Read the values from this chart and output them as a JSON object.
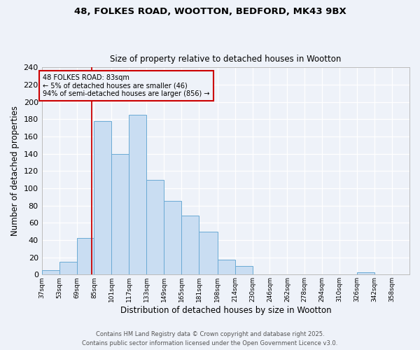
{
  "title1": "48, FOLKES ROAD, WOOTTON, BEDFORD, MK43 9BX",
  "title2": "Size of property relative to detached houses in Wootton",
  "xlabel": "Distribution of detached houses by size in Wootton",
  "ylabel": "Number of detached properties",
  "bar_left_edges": [
    37,
    53,
    69,
    85,
    101,
    117,
    133,
    149,
    165,
    181,
    198,
    214,
    230,
    246,
    262,
    278,
    294,
    310,
    326,
    342
  ],
  "bar_widths": [
    16,
    16,
    16,
    16,
    16,
    16,
    16,
    16,
    16,
    17,
    16,
    16,
    16,
    16,
    16,
    16,
    16,
    16,
    16,
    16
  ],
  "bar_heights": [
    5,
    15,
    42,
    178,
    140,
    185,
    110,
    85,
    68,
    50,
    17,
    10,
    0,
    0,
    0,
    0,
    0,
    0,
    3,
    0
  ],
  "bar_facecolor": "#c9ddf2",
  "bar_edgecolor": "#6aaad4",
  "tick_labels": [
    "37sqm",
    "53sqm",
    "69sqm",
    "85sqm",
    "101sqm",
    "117sqm",
    "133sqm",
    "149sqm",
    "165sqm",
    "181sqm",
    "198sqm",
    "214sqm",
    "230sqm",
    "246sqm",
    "262sqm",
    "278sqm",
    "294sqm",
    "310sqm",
    "326sqm",
    "342sqm",
    "358sqm"
  ],
  "ylim": [
    0,
    240
  ],
  "yticks": [
    0,
    20,
    40,
    60,
    80,
    100,
    120,
    140,
    160,
    180,
    200,
    220,
    240
  ],
  "vline_x": 83,
  "vline_color": "#cc0000",
  "annotation_line1": "48 FOLKES ROAD: 83sqm",
  "annotation_line2": "← 5% of detached houses are smaller (46)",
  "annotation_line3": "94% of semi-detached houses are larger (856) →",
  "annotation_box_color": "#cc0000",
  "bg_color": "#eef2f9",
  "grid_color": "#ffffff",
  "footer1": "Contains HM Land Registry data © Crown copyright and database right 2025.",
  "footer2": "Contains public sector information licensed under the Open Government Licence v3.0."
}
